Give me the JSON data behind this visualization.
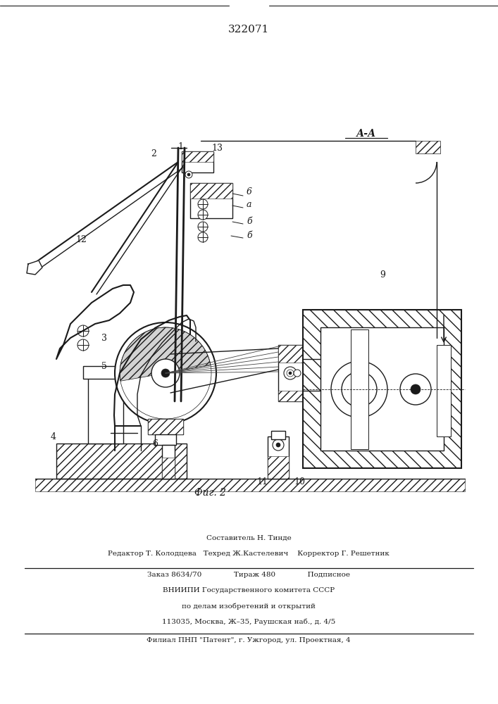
{
  "patent_number": "322071",
  "figure_label": "Фиг. 2",
  "section_label": "А-А",
  "bg_color": "#ffffff",
  "line_color": "#1a1a1a",
  "footer_lines": [
    "Составитель Н. Тинде",
    "Редактор Т. Колодцева   Техред Ж.Кастелевич    Корректор Г. Решетник",
    "Заказ 8634/70              Тираж 480              Подписное",
    "ВНИИПИ Государственного комитета СССР",
    "по делам изобретений и открытий",
    "113035, Москва, Ж–35, Раушская наб., д. 4/5",
    "Филиал ПНП \"Патент\", г. Ужгород, ул. Проектная, 4"
  ]
}
